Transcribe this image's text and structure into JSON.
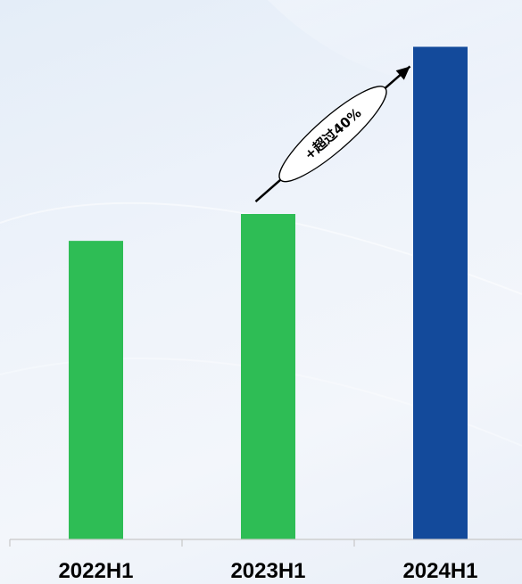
{
  "chart_data": {
    "type": "bar",
    "categories": [
      "2022H1",
      "2023H1",
      "2024H1"
    ],
    "values": [
      100,
      109,
      165
    ],
    "colors": [
      "#2ebd55",
      "#2ebd55",
      "#134a9b"
    ],
    "ylim": [
      0,
      175
    ],
    "grid": false,
    "annotation": {
      "text": "+超过40%",
      "from_category": "2023H1",
      "to_category": "2024H1"
    }
  }
}
